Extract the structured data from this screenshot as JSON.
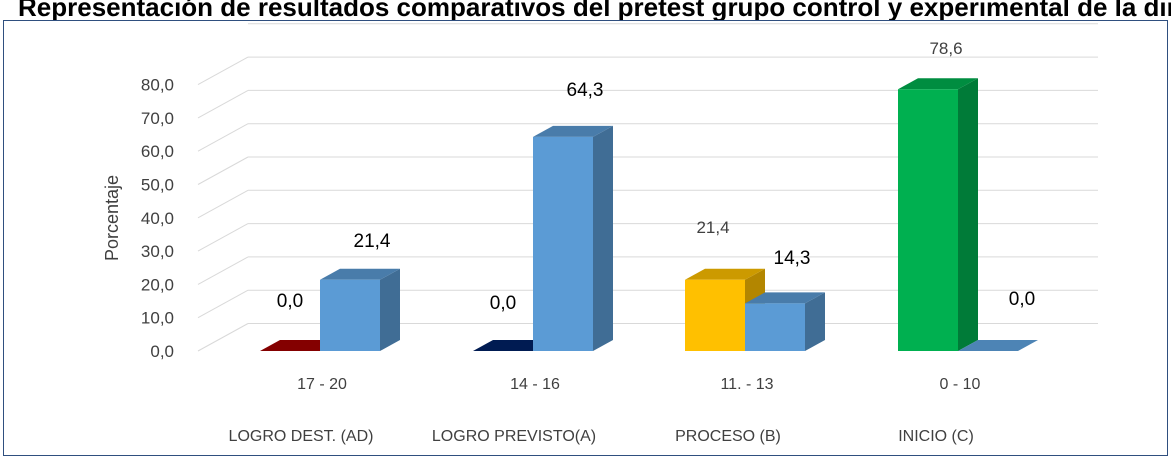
{
  "page": {
    "title": "Representación de resultados comparativos del pretest grupo control y experimental de la dimensión de la categoría"
  },
  "chart_data": {
    "type": "bar",
    "categories": [
      "17 - 20",
      "14 - 16",
      "11. - 13",
      "0 - 10"
    ],
    "category_groups": [
      "LOGRO DEST. (AD)",
      "LOGRO PREVISTO(A)",
      "PROCESO (B)",
      "INICIO (C)"
    ],
    "series": [
      {
        "values": [
          0.0,
          0.0,
          21.4,
          78.6
        ],
        "labels": [
          "0,0",
          "0,0",
          "21,4",
          "78,6"
        ]
      },
      {
        "values": [
          21.4,
          64.3,
          14.3,
          0.0
        ],
        "labels": [
          "21,4",
          "64,3",
          "14,3",
          "0,0"
        ],
        "color": "#5b9bd5"
      }
    ],
    "point_colors": [
      "#9b0000",
      "#002060",
      "#ffc000",
      "#00b050"
    ],
    "xlabel": "",
    "ylabel": "Porcentaje",
    "yticks": [
      "0,0",
      "10,0",
      "20,0",
      "30,0",
      "40,0",
      "50,0",
      "60,0",
      "70,0",
      "80,0"
    ],
    "ylim": [
      0,
      90
    ],
    "grid": true,
    "style": "3d-column"
  }
}
